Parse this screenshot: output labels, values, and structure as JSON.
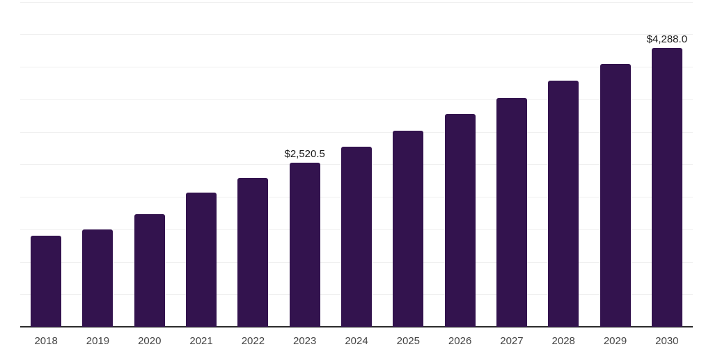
{
  "chart_data": {
    "type": "bar",
    "title": "",
    "xlabel": "",
    "ylabel": "",
    "categories": [
      "2018",
      "2019",
      "2020",
      "2021",
      "2022",
      "2023",
      "2024",
      "2025",
      "2026",
      "2027",
      "2028",
      "2029",
      "2030"
    ],
    "values": [
      1398,
      1497,
      1729,
      2067,
      2289,
      2520.5,
      2770,
      3013,
      3273,
      3522,
      3789,
      4046,
      4288
    ],
    "value_labels": [
      "",
      "",
      "",
      "",
      "",
      "$2,520.5",
      "",
      "",
      "",
      "",
      "",
      "",
      "$4,288.0"
    ],
    "ylim": [
      0,
      5000
    ],
    "grid_step": 500,
    "grid": true,
    "legend": false,
    "colors": {
      "bar": "#33134E",
      "gridline": "#F0F0F0",
      "axis": "#2B2B2B",
      "tick_label": "#444444",
      "value_label": "#1A1A1A",
      "background": "#FFFFFF"
    }
  }
}
